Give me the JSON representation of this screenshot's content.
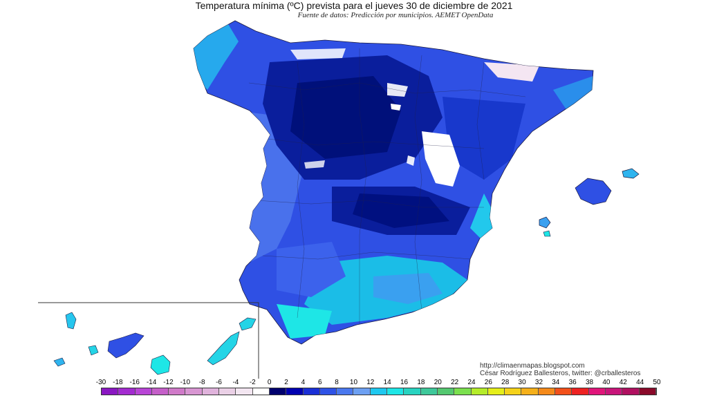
{
  "title": "Temperatura mínima (ºC) prevista para el jueves 30 de diciembre de 2021",
  "subtitle": "Fuente de datos: Predicción por municipios. AEMET OpenData",
  "credits": {
    "url": "http://climaenmapas.blogspot.com",
    "author": "César Rodríguez Ballesteros, twitter: @crballesteros"
  },
  "legend": {
    "labels": [
      "-30",
      "-18",
      "-16",
      "-14",
      "-12",
      "-10",
      "-8",
      "-6",
      "-4",
      "-2",
      "0",
      "2",
      "4",
      "6",
      "8",
      "10",
      "12",
      "14",
      "16",
      "18",
      "20",
      "22",
      "24",
      "26",
      "28",
      "30",
      "32",
      "34",
      "36",
      "38",
      "40",
      "42",
      "44",
      "50"
    ],
    "colors": [
      "#8a17c2",
      "#a32bd0",
      "#b845d6",
      "#c55fc9",
      "#d07ac9",
      "#d896d2",
      "#e0b3dc",
      "#ead0e6",
      "#f3e6f1",
      "#ffffff",
      "#00006e",
      "#0000b0",
      "#1a2fd6",
      "#2e52e6",
      "#4a78ee",
      "#6da0f2",
      "#1fc8ef",
      "#1ee6e6",
      "#28d3c0",
      "#3ec89a",
      "#54c870",
      "#7be04e",
      "#b5ec2a",
      "#e5ee1a",
      "#f5d21a",
      "#f5b01a",
      "#f58a1a",
      "#f2501a",
      "#ee2222",
      "#e0157a",
      "#c8157a",
      "#b01060",
      "#8a0a2a"
    ]
  },
  "regions": {
    "peninsula": "Península y Baleares",
    "canarias": "Canarias"
  },
  "colors": {
    "deep": "#00107a",
    "mid": "#0a2ad6",
    "light": "#3c62ec",
    "cyan": "#1ee6e6",
    "frost": "#ffffff"
  }
}
